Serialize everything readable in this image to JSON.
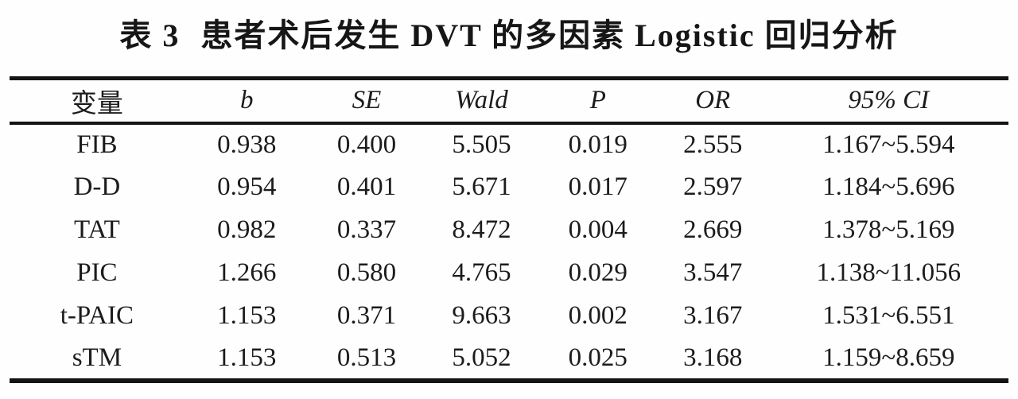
{
  "chart_data": {
    "type": "table",
    "title_label": "表 3",
    "title_text": "患者术后发生 DVT 的多因素 Logistic 回归分析",
    "columns": [
      "变量",
      "b",
      "SE",
      "Wald",
      "P",
      "OR",
      "95% CI"
    ],
    "rows": [
      [
        "FIB",
        "0.938",
        "0.400",
        "5.505",
        "0.019",
        "2.555",
        "1.167~5.594"
      ],
      [
        "D-D",
        "0.954",
        "0.401",
        "5.671",
        "0.017",
        "2.597",
        "1.184~5.696"
      ],
      [
        "TAT",
        "0.982",
        "0.337",
        "8.472",
        "0.004",
        "2.669",
        "1.378~5.169"
      ],
      [
        "PIC",
        "1.266",
        "0.580",
        "4.765",
        "0.029",
        "3.547",
        "1.138~11.056"
      ],
      [
        "t-PAIC",
        "1.153",
        "0.371",
        "9.663",
        "0.002",
        "3.167",
        "1.531~6.551"
      ],
      [
        "sTM",
        "1.153",
        "0.513",
        "5.052",
        "0.025",
        "3.168",
        "1.159~8.659"
      ]
    ]
  },
  "colors": {
    "background": "#fefefe",
    "text": "#1c1c1c",
    "rule": "#141414"
  }
}
